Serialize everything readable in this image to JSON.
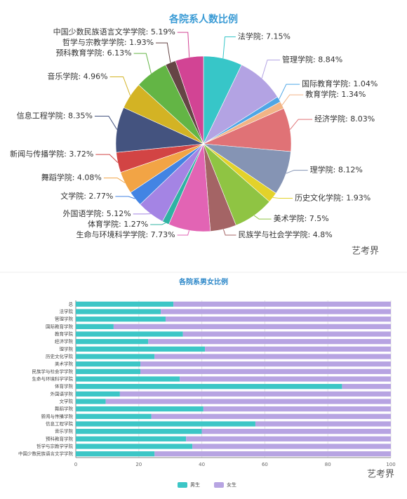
{
  "chart_data": [
    {
      "type": "pie",
      "title": "各院系人数比例",
      "labels": [
        "法学院: 7.15%",
        "管理学院: 8.84%",
        "国际教育学院: 1.04%",
        "教育学院: 1.34%",
        "经济学院: 8.03%",
        "理学院: 8.12%",
        "历史文化学院: 1.93%",
        "美术学院: 7.5%",
        "民族学与社会学学院: 4.8%",
        "生命与环境科学学院: 7.73%",
        "体育学院: 1.27%",
        "外国语学院: 5.12%",
        "文学院: 2.77%",
        "舞蹈学院: 4.08%",
        "新闻与传播学院: 3.72%",
        "信息工程学院: 8.35%",
        "音乐学院: 4.96%",
        "预科教育学院: 6.13%",
        "哲学与宗教学学院: 1.93%",
        "中国少数民族语言文学学院: 5.19%"
      ],
      "values": [
        7.15,
        8.84,
        1.04,
        1.34,
        8.03,
        8.12,
        1.93,
        7.5,
        4.8,
        7.73,
        1.27,
        5.12,
        2.77,
        4.08,
        3.72,
        8.35,
        4.96,
        6.13,
        1.93,
        5.19
      ],
      "colors": [
        "#37c6c8",
        "#b3a3e3",
        "#4ea6e6",
        "#f2b486",
        "#e07276",
        "#8594b4",
        "#e3d22a",
        "#8fc443",
        "#a46465",
        "#e264b4",
        "#2fb3a3",
        "#a484e4",
        "#4384e3",
        "#f2a445",
        "#d24444",
        "#44537f",
        "#d3b324",
        "#63b545",
        "#654545",
        "#d24494"
      ],
      "watermark": "艺考界"
    },
    {
      "type": "bar",
      "orientation": "horizontal",
      "stacked": true,
      "title": "各院系男女比例",
      "categories": [
        "总",
        "法学院",
        "管理学院",
        "国际教育学院",
        "教育学院",
        "经济学院",
        "理学院",
        "历史文化学院",
        "美术学院",
        "民族学与社会学学院",
        "生命与环境科学学院",
        "体育学院",
        "外国语学院",
        "文学院",
        "舞蹈学院",
        "新闻与传播学院",
        "信息工程学院",
        "音乐学院",
        "预科教育学院",
        "哲学与宗教学学院",
        "中国少数民族语言文学学院"
      ],
      "series": [
        {
          "name": "男生",
          "color": "#3cc6c6",
          "values": [
            31,
            27,
            28.5,
            12,
            34,
            23,
            41,
            25,
            20.5,
            20.5,
            33,
            84.5,
            14,
            9.5,
            40.5,
            24,
            57,
            40,
            35,
            37,
            25
          ]
        },
        {
          "name": "女生",
          "color": "#b7a4e2",
          "values": [
            69,
            73,
            71.5,
            88,
            66,
            77,
            59,
            75,
            79.5,
            79.5,
            67,
            15.5,
            86,
            90.5,
            59.5,
            76,
            43,
            60,
            65,
            63,
            75
          ]
        }
      ],
      "xlim": [
        0,
        100
      ],
      "xticks": [
        0,
        20,
        40,
        60,
        80,
        100
      ],
      "grid": true,
      "legend": "bottom",
      "watermark": "艺考界"
    }
  ]
}
